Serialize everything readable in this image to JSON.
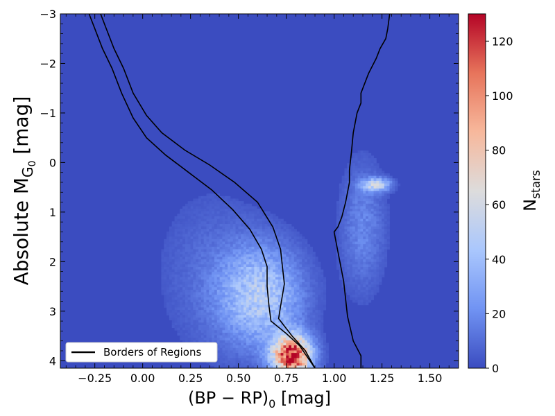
{
  "chart_data": {
    "type": "heatmap",
    "title": "",
    "xlabel": "(BP − RP)₀ [mag]",
    "xlabel_parts": {
      "main": "(BP − RP)",
      "sub": "0",
      "unit": " [mag]"
    },
    "ylabel": "Absolute M_G₀ [mag]",
    "ylabel_parts": {
      "main": "Absolute M",
      "sub": "G",
      "subsub": "0",
      "unit": " [mag]"
    },
    "xlim": [
      -0.43,
      1.65
    ],
    "ylim": [
      4.15,
      -3.0
    ],
    "y_inverted": true,
    "x_ticks": [
      -0.25,
      0.0,
      0.25,
      0.5,
      0.75,
      1.0,
      1.25,
      1.5
    ],
    "x_tick_labels": [
      "−0.25",
      "0.00",
      "0.25",
      "0.50",
      "0.75",
      "1.00",
      "1.25",
      "1.50"
    ],
    "y_ticks": [
      -3,
      -2,
      -1,
      0,
      1,
      2,
      3,
      4
    ],
    "y_tick_labels": [
      "−3",
      "−2",
      "−1",
      "0",
      "1",
      "2",
      "3",
      "4"
    ],
    "colorbar": {
      "label": "N_stars",
      "label_parts": {
        "main": "N",
        "sub": "stars"
      },
      "range": [
        0,
        130
      ],
      "ticks": [
        0,
        20,
        40,
        60,
        80,
        100,
        120
      ],
      "tick_labels": [
        "0",
        "20",
        "40",
        "60",
        "80",
        "100",
        "120"
      ],
      "colormap": "coolwarm",
      "colors": [
        "#3b4cc0",
        "#7093f3",
        "#aac7fd",
        "#dddcdc",
        "#f7b89c",
        "#e7745b",
        "#b40426"
      ]
    },
    "density_features": [
      {
        "name": "main-sequence-turnoff",
        "center": [
          0.78,
          3.9
        ],
        "spread": [
          0.07,
          0.28
        ],
        "peak": 125
      },
      {
        "name": "subgiant-branch",
        "center": [
          0.62,
          2.7
        ],
        "spread": [
          0.15,
          0.7
        ],
        "peak": 45
      },
      {
        "name": "red-clump",
        "center": [
          1.22,
          0.45
        ],
        "spread": [
          0.05,
          0.09
        ],
        "peak": 55
      },
      {
        "name": "red-giant-branch",
        "center": [
          1.15,
          1.3
        ],
        "spread": [
          0.08,
          0.9
        ],
        "peak": 18
      },
      {
        "name": "blue-diffuse",
        "center": [
          0.35,
          2.2
        ],
        "spread": [
          0.2,
          1.2
        ],
        "peak": 9
      }
    ],
    "series": [
      {
        "name": "Borders of Regions",
        "color": "#000000",
        "lines": [
          {
            "points": [
              [
                -0.28,
                -3.0
              ],
              [
                -0.25,
                -2.7
              ],
              [
                -0.21,
                -2.3
              ],
              [
                -0.16,
                -1.9
              ],
              [
                -0.11,
                -1.4
              ],
              [
                -0.05,
                -0.9
              ],
              [
                0.02,
                -0.5
              ],
              [
                0.12,
                -0.15
              ],
              [
                0.24,
                0.2
              ],
              [
                0.36,
                0.55
              ],
              [
                0.47,
                0.95
              ],
              [
                0.56,
                1.35
              ],
              [
                0.62,
                1.75
              ],
              [
                0.65,
                2.1
              ],
              [
                0.65,
                2.5
              ],
              [
                0.66,
                2.9
              ],
              [
                0.67,
                3.2
              ],
              [
                0.75,
                3.45
              ],
              [
                0.82,
                3.7
              ],
              [
                0.9,
                4.15
              ]
            ]
          },
          {
            "points": [
              [
                -0.22,
                -3.0
              ],
              [
                -0.19,
                -2.7
              ],
              [
                -0.15,
                -2.3
              ],
              [
                -0.1,
                -1.9
              ],
              [
                -0.05,
                -1.4
              ],
              [
                0.02,
                -0.95
              ],
              [
                0.1,
                -0.6
              ],
              [
                0.22,
                -0.25
              ],
              [
                0.35,
                0.05
              ],
              [
                0.48,
                0.4
              ],
              [
                0.6,
                0.8
              ],
              [
                0.68,
                1.3
              ],
              [
                0.72,
                1.75
              ],
              [
                0.73,
                2.1
              ],
              [
                0.74,
                2.45
              ],
              [
                0.72,
                2.9
              ],
              [
                0.71,
                3.15
              ],
              [
                0.78,
                3.5
              ],
              [
                0.85,
                3.8
              ],
              [
                0.9,
                4.15
              ]
            ]
          },
          {
            "points": [
              [
                1.29,
                -3.0
              ],
              [
                1.28,
                -2.7
              ],
              [
                1.27,
                -2.5
              ],
              [
                1.24,
                -2.3
              ],
              [
                1.22,
                -2.1
              ],
              [
                1.18,
                -1.8
              ],
              [
                1.14,
                -1.4
              ],
              [
                1.14,
                -1.2
              ],
              [
                1.12,
                -1.0
              ],
              [
                1.1,
                -0.6
              ],
              [
                1.09,
                -0.2
              ],
              [
                1.08,
                0.15
              ],
              [
                1.08,
                0.4
              ],
              [
                1.06,
                0.8
              ],
              [
                1.04,
                1.1
              ],
              [
                1.02,
                1.3
              ],
              [
                1.0,
                1.4
              ],
              [
                1.02,
                1.8
              ],
              [
                1.05,
                2.4
              ],
              [
                1.07,
                3.1
              ],
              [
                1.1,
                3.6
              ],
              [
                1.14,
                3.9
              ],
              [
                1.14,
                4.15
              ]
            ]
          }
        ]
      }
    ],
    "legend": {
      "position": "lower-left",
      "entries": [
        "Borders of Regions"
      ]
    }
  }
}
